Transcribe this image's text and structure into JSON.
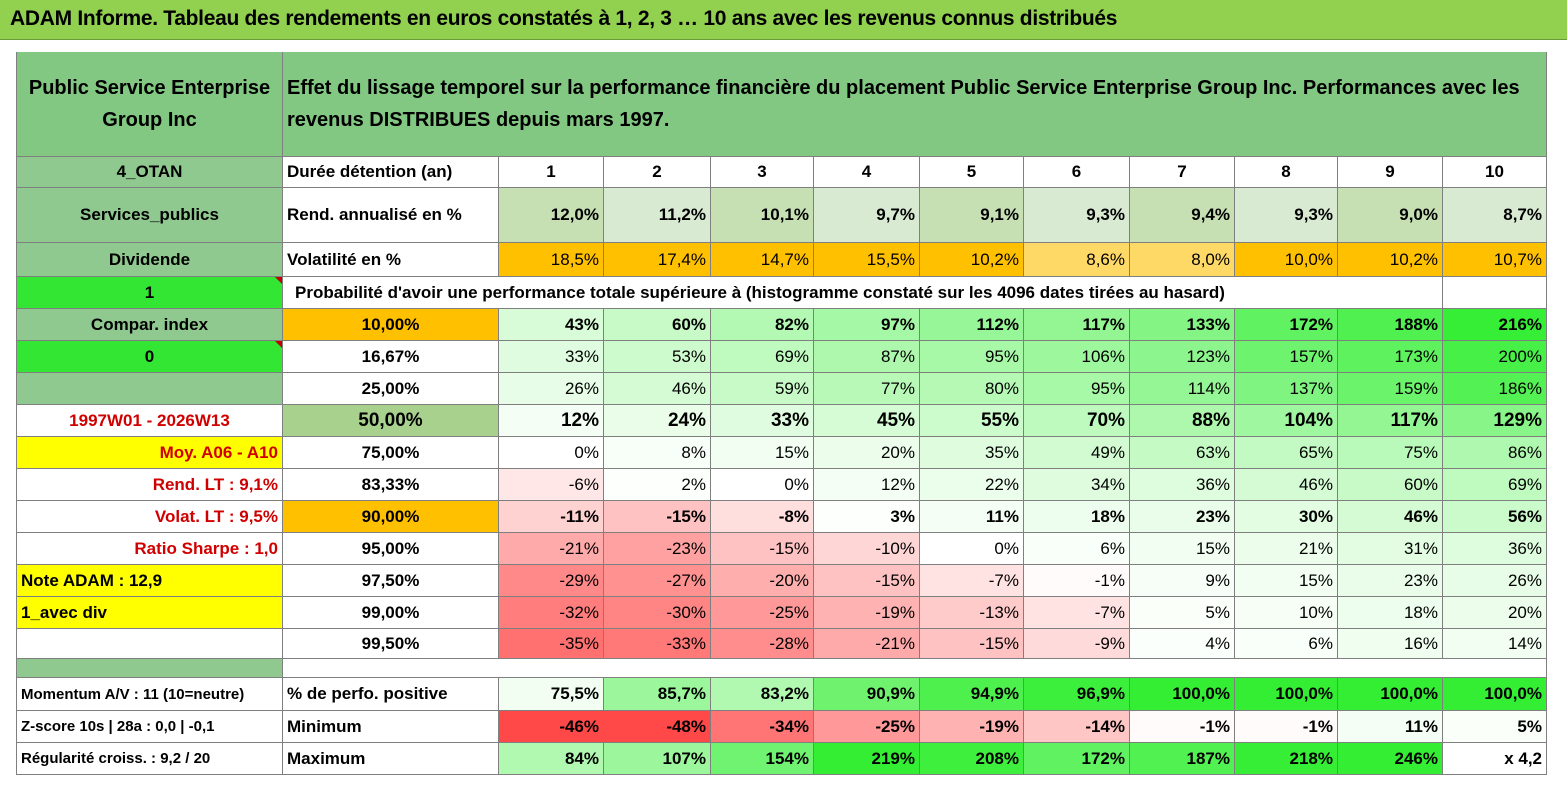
{
  "title": "ADAM Informe. Tableau des rendements en euros constatés à 1, 2, 3 … 10 ans avec les revenus connus distribués",
  "header": {
    "company": "Public Service Enterprise Group Inc",
    "description": "Effet du lissage temporel sur la performance financière du placement Public Service Enterprise Group Inc. Performances avec les revenus DISTRIBUES depuis mars 1997."
  },
  "side": {
    "group": "4_OTAN",
    "sector": "Services_publics",
    "type": "Dividende",
    "flag1": "1",
    "compar": "Compar. index",
    "flag0": "0",
    "blank": "",
    "period": "1997W01 - 2026W13",
    "moy": "Moy. A06 - A10",
    "rend_lt": "Rend. LT :   9,1%",
    "volat_lt": "Volat. LT :   9,5%",
    "sharpe": "Ratio Sharpe :    1,0",
    "note": "Note ADAM : 12,9",
    "avec_div": "1_avec div",
    "momentum": "Momentum A/V : 11 (10=neutre)",
    "zscore": "Z-score 10s | 28a : 0,0 | -0,1",
    "regularite": "Régularité croiss. : 9,2 / 20"
  },
  "stats": {
    "duree_label": "Durée détention (an)",
    "years": [
      "1",
      "2",
      "3",
      "4",
      "5",
      "6",
      "7",
      "8",
      "9",
      "10"
    ],
    "rend_label": "Rend. annualisé en %",
    "rend": [
      "12,0%",
      "11,2%",
      "10,1%",
      "9,7%",
      "9,1%",
      "9,3%",
      "9,4%",
      "9,3%",
      "9,0%",
      "8,7%"
    ],
    "vol_label": "Volatilité en %",
    "vol": [
      "18,5%",
      "17,4%",
      "14,7%",
      "15,5%",
      "10,2%",
      "8,6%",
      "8,0%",
      "10,0%",
      "10,2%",
      "10,7%"
    ]
  },
  "prob_label": "Probabilité d'avoir une performance totale supérieure à (histogramme constaté sur les 4096 dates tirées au hasard)",
  "quantiles": [
    {
      "p": "10,00%",
      "v": [
        "43%",
        "60%",
        "82%",
        "97%",
        "112%",
        "117%",
        "133%",
        "172%",
        "188%",
        "216%"
      ]
    },
    {
      "p": "16,67%",
      "v": [
        "33%",
        "53%",
        "69%",
        "87%",
        "95%",
        "106%",
        "123%",
        "157%",
        "173%",
        "200%"
      ]
    },
    {
      "p": "25,00%",
      "v": [
        "26%",
        "46%",
        "59%",
        "77%",
        "80%",
        "95%",
        "114%",
        "137%",
        "159%",
        "186%"
      ]
    },
    {
      "p": "50,00%",
      "v": [
        "12%",
        "24%",
        "33%",
        "45%",
        "55%",
        "70%",
        "88%",
        "104%",
        "117%",
        "129%"
      ]
    },
    {
      "p": "75,00%",
      "v": [
        "0%",
        "8%",
        "15%",
        "20%",
        "35%",
        "49%",
        "63%",
        "65%",
        "75%",
        "86%"
      ]
    },
    {
      "p": "83,33%",
      "v": [
        "-6%",
        "2%",
        "0%",
        "12%",
        "22%",
        "34%",
        "36%",
        "46%",
        "60%",
        "69%"
      ]
    },
    {
      "p": "90,00%",
      "v": [
        "-11%",
        "-15%",
        "-8%",
        "3%",
        "11%",
        "18%",
        "23%",
        "30%",
        "46%",
        "56%"
      ]
    },
    {
      "p": "95,00%",
      "v": [
        "-21%",
        "-23%",
        "-15%",
        "-10%",
        "0%",
        "6%",
        "15%",
        "21%",
        "31%",
        "36%"
      ]
    },
    {
      "p": "97,50%",
      "v": [
        "-29%",
        "-27%",
        "-20%",
        "-15%",
        "-7%",
        "-1%",
        "9%",
        "15%",
        "23%",
        "26%"
      ]
    },
    {
      "p": "99,00%",
      "v": [
        "-32%",
        "-30%",
        "-25%",
        "-19%",
        "-13%",
        "-7%",
        "5%",
        "10%",
        "18%",
        "20%"
      ]
    },
    {
      "p": "99,50%",
      "v": [
        "-35%",
        "-33%",
        "-28%",
        "-21%",
        "-15%",
        "-9%",
        "4%",
        "6%",
        "16%",
        "14%"
      ]
    }
  ],
  "bottom": {
    "pos_label": "% de perfo. positive",
    "pos": [
      "75,5%",
      "85,7%",
      "83,2%",
      "90,9%",
      "94,9%",
      "96,9%",
      "100,0%",
      "100,0%",
      "100,0%",
      "100,0%"
    ],
    "min_label": "Minimum",
    "min": [
      "-46%",
      "-48%",
      "-34%",
      "-25%",
      "-19%",
      "-14%",
      "-1%",
      "-1%",
      "11%",
      "5%"
    ],
    "max_label": "Maximum",
    "max": [
      "84%",
      "107%",
      "154%",
      "219%",
      "208%",
      "172%",
      "187%",
      "218%",
      "246%",
      "x 4,2"
    ]
  },
  "colors": {
    "header_green": "#82c882",
    "title_green": "#92d050",
    "label_green": "#8fc98f",
    "bright_green": "#33e633",
    "orange": "#ffc000",
    "yellow": "#ffff00",
    "rend_green": "#c6e0b4",
    "median_green": "#a9d18e",
    "red_text": "#d00000"
  }
}
